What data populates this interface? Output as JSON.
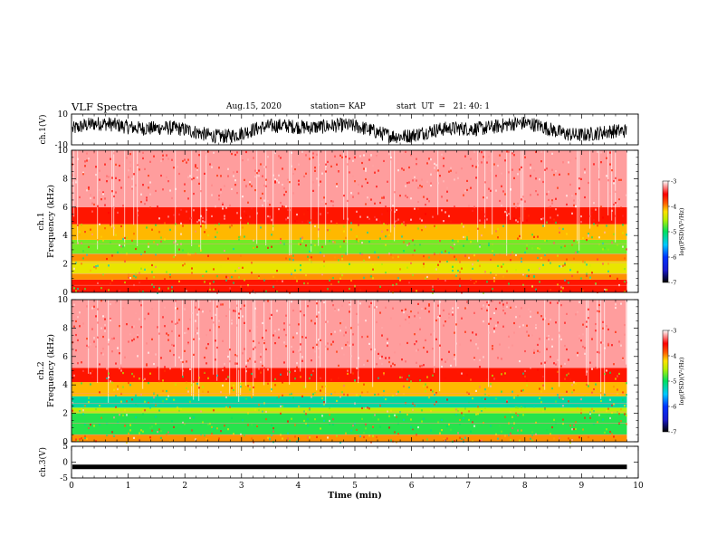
{
  "header": {
    "title": "VLF Spectra",
    "date": "Aug.15, 2020",
    "station": "station= KAP",
    "start_time": "start  UT  =   21: 40: 1"
  },
  "chart_data": [
    {
      "type": "line",
      "panel": "ch1-waveform",
      "ylabel": "ch.1(V)",
      "ylim": [
        -10,
        10
      ],
      "y_ticks": [
        "10",
        "-10"
      ],
      "xlim": [
        0,
        10
      ],
      "line_color": "#000000"
    },
    {
      "type": "heatmap",
      "panel": "ch1-spectrogram",
      "ylabel": "ch.1\nFrequency (kHz)",
      "ylabel_lines": [
        "ch.1",
        "Frequency  (kHz)"
      ],
      "ylim": [
        0,
        10
      ],
      "y_ticks": [
        "0",
        "2",
        "4",
        "6",
        "8",
        "10"
      ],
      "xlim": [
        0,
        10
      ],
      "data_end_min": 9.8,
      "colorbar": {
        "label": "log(PSD)(V²/Hz)",
        "range": [
          -7,
          -3
        ],
        "ticks": [
          "-3",
          "-4",
          "-5",
          "-6",
          "-7"
        ]
      },
      "bands": [
        {
          "from_khz": 0.0,
          "to_khz": 0.9,
          "level": -3.6
        },
        {
          "from_khz": 0.9,
          "to_khz": 1.3,
          "level": -4.0
        },
        {
          "from_khz": 1.3,
          "to_khz": 2.2,
          "level": -4.3
        },
        {
          "from_khz": 2.2,
          "to_khz": 2.7,
          "level": -4.0
        },
        {
          "from_khz": 2.7,
          "to_khz": 3.7,
          "level": -4.7
        },
        {
          "from_khz": 3.7,
          "to_khz": 4.8,
          "level": -4.1
        },
        {
          "from_khz": 4.8,
          "to_khz": 6.0,
          "level": -3.6
        },
        {
          "from_khz": 6.0,
          "to_khz": 10.0,
          "level": -3.2
        }
      ]
    },
    {
      "type": "heatmap",
      "panel": "ch2-spectrogram",
      "ylabel": "ch.2\nFrequency (kHz)",
      "ylabel_lines": [
        "ch.2",
        "Frequency  (kHz)"
      ],
      "ylim": [
        0,
        10
      ],
      "y_ticks": [
        "0",
        "2",
        "4",
        "6",
        "8",
        "10"
      ],
      "xlim": [
        0,
        10
      ],
      "data_end_min": 9.8,
      "colorbar": {
        "label": "log(PSD)(V²/Hz)",
        "range": [
          -7,
          -3
        ],
        "ticks": [
          "-3",
          "-4",
          "-5",
          "-6",
          "-7"
        ]
      },
      "bands": [
        {
          "from_khz": 0.0,
          "to_khz": 0.5,
          "level": -4.0
        },
        {
          "from_khz": 0.5,
          "to_khz": 2.0,
          "level": -4.9
        },
        {
          "from_khz": 2.0,
          "to_khz": 2.4,
          "level": -4.5
        },
        {
          "from_khz": 2.4,
          "to_khz": 3.2,
          "level": -5.2
        },
        {
          "from_khz": 3.2,
          "to_khz": 4.2,
          "level": -4.1
        },
        {
          "from_khz": 4.2,
          "to_khz": 5.2,
          "level": -3.6
        },
        {
          "from_khz": 5.2,
          "to_khz": 10.0,
          "level": -3.2
        }
      ]
    },
    {
      "type": "line",
      "panel": "ch3-waveform",
      "ylabel": "ch.3(V)",
      "ylim": [
        -5,
        5
      ],
      "y_ticks": [
        "5",
        "0",
        "-5"
      ],
      "xlim": [
        0,
        10
      ],
      "constant_value": -1.5,
      "line_color": "#000000"
    }
  ],
  "x_axis": {
    "label": "Time  (min)",
    "ticks": [
      "0",
      "1",
      "2",
      "3",
      "4",
      "5",
      "6",
      "7",
      "8",
      "9",
      "10"
    ],
    "range": [
      0,
      10
    ]
  }
}
